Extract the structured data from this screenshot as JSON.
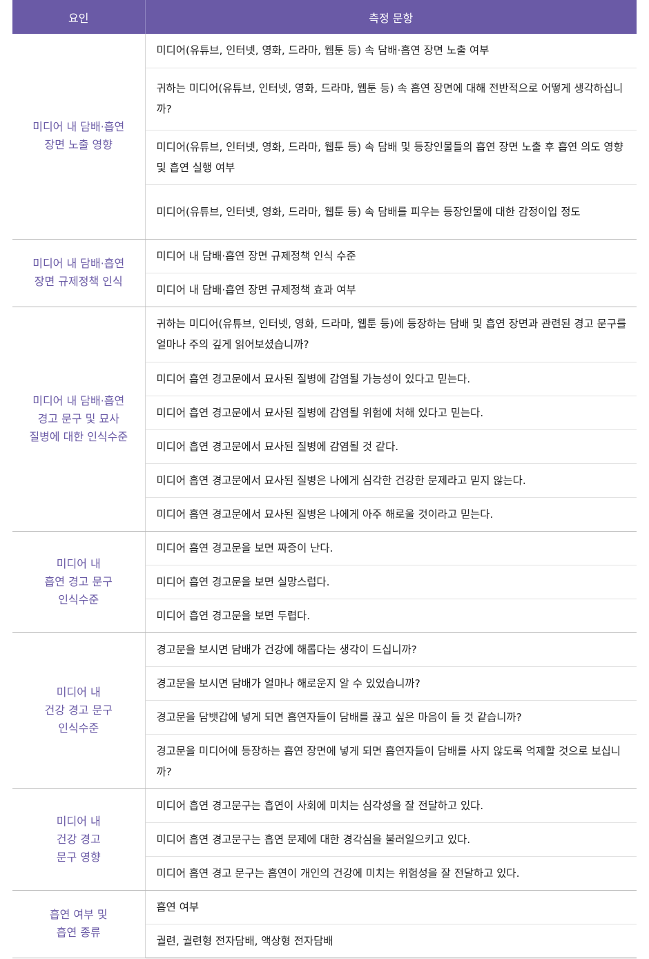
{
  "header": {
    "col1": "요인",
    "col2": "측정 문항"
  },
  "groups": [
    {
      "factor": "미디어 내 담배·흡연\n장면 노출 영향",
      "items": [
        "미디어(유튜브, 인터넷, 영화, 드라마, 웹툰 등) 속 담배·흡연 장면 노출 여부",
        "귀하는 미디어(유튜브, 인터넷, 영화, 드라마, 웹툰 등) 속 흡연 장면에 대해 전반적으로 어떻게 생각하십니까?",
        "미디어(유튜브, 인터넷, 영화, 드라마, 웹툰 등) 속 담배 및 등장인물들의 흡연 장면 노출 후 흡연 의도 영향 및 흡연 실행 여부",
        "미디어(유튜브, 인터넷, 영화, 드라마, 웹툰 등) 속 담배를 피우는 등장인물에 대한 감정이입 정도"
      ]
    },
    {
      "factor": "미디어 내 담배·흡연\n장면 규제정책 인식",
      "items": [
        "미디어 내 담배·흡연 장면 규제정책 인식 수준",
        "미디어 내 담배·흡연 장면 규제정책 효과 여부"
      ]
    },
    {
      "factor": "미디어 내 담배·흡연\n경고 문구 및 묘사\n질병에 대한 인식수준",
      "items": [
        "귀하는 미디어(유튜브, 인터넷, 영화, 드라마, 웹툰 등)에 등장하는 담배 및 흡연 장면과 관련된 경고 문구를 얼마나 주의 깊게 읽어보셨습니까?",
        "미디어 흡연 경고문에서 묘사된 질병에 감염될 가능성이 있다고 믿는다.",
        "미디어 흡연 경고문에서 묘사된 질병에 감염될 위험에 처해 있다고 믿는다.",
        "미디어 흡연 경고문에서 묘사된 질병에 감염될 것 같다.",
        "미디어 흡연 경고문에서 묘사된 질병은 나에게 심각한 건강한 문제라고 믿지 않는다.",
        "미디어 흡연 경고문에서 묘사된 질병은 나에게 아주 해로울 것이라고 믿는다."
      ]
    },
    {
      "factor": "미디어 내\n흡연 경고 문구\n인식수준",
      "items": [
        "미디어 흡연 경고문을 보면 짜증이 난다.",
        "미디어 흡연 경고문을 보면 실망스럽다.",
        "미디어 흡연 경고문을 보면 두렵다."
      ]
    },
    {
      "factor": "미디어 내\n건강 경고 문구\n인식수준",
      "items": [
        "경고문을 보시면 담배가 건강에 해롭다는 생각이 드십니까?",
        "경고문을 보시면 담배가 얼마나 해로운지 알 수 있었습니까?",
        "경고문을 담뱃갑에 넣게 되면 흡연자들이 담배를 끊고 싶은 마음이 들 것 같습니까?",
        "경고문을 미디어에 등장하는 흡연 장면에 넣게 되면 흡연자들이 담배를 사지 않도록 억제할 것으로 보십니까?"
      ]
    },
    {
      "factor": "미디어 내\n건강 경고\n문구 영향",
      "items": [
        "미디어 흡연 경고문구는 흡연이 사회에 미치는 심각성을 잘 전달하고 있다.",
        "미디어 흡연 경고문구는 흡연 문제에 대한 경각심을 불러일으키고 있다.",
        "미디어 흡연 경고 문구는 흡연이 개인의 건강에 미치는 위험성을 잘 전달하고 있다."
      ]
    },
    {
      "factor": "흡연 여부 및\n흡연 종류",
      "items": [
        "흡연 여부",
        "궐련, 궐련형 전자담배, 액상형 전자담배"
      ]
    }
  ],
  "colors": {
    "header_bg": "#6a5aa6",
    "factor_text": "#6a5aa6"
  }
}
